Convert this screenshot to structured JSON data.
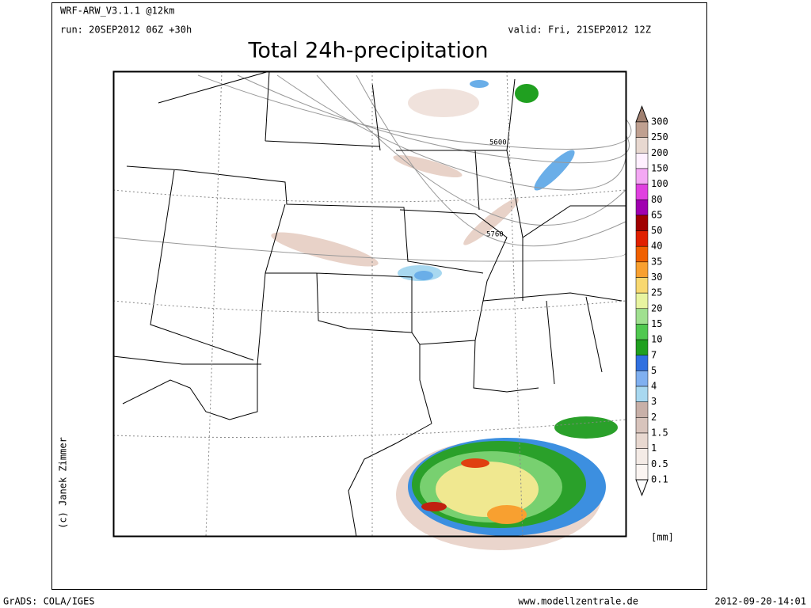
{
  "header": {
    "model": "WRF-ARW_V3.1.1 @12km",
    "run": "run: 20SEP2012 06Z +30h",
    "valid": "valid: Fri, 21SEP2012 12Z",
    "title": "Total 24h-precipitation"
  },
  "contours": [
    "5600",
    "5760"
  ],
  "legend": {
    "labels": [
      "300",
      "250",
      "200",
      "150",
      "100",
      "80",
      "65",
      "50",
      "40",
      "35",
      "30",
      "25",
      "20",
      "15",
      "10",
      "7",
      "5",
      "4",
      "3",
      "2",
      "1.5",
      "1",
      "0.5",
      "0.1"
    ],
    "colors": [
      "#a08070",
      "#c0a090",
      "#e8d8d0",
      "#fff0ff",
      "#f4a8f4",
      "#e040e0",
      "#a000b0",
      "#a00000",
      "#e02000",
      "#f06000",
      "#f8a030",
      "#f8d870",
      "#e8f4a0",
      "#a0e090",
      "#50c850",
      "#20a020",
      "#3070e0",
      "#80b0f0",
      "#a8d8f0",
      "#c8b0a8",
      "#d8c4bc",
      "#e8d8d0",
      "#f4ebe6",
      "#fbf5f2",
      "#ffffff"
    ],
    "unit": "[mm]"
  },
  "credit": "(c) Janek Zimmer",
  "footer": {
    "left": "GrADS: COLA/IGES",
    "center": "www.modellzentrale.de",
    "right": "2012-09-20-14:01"
  }
}
